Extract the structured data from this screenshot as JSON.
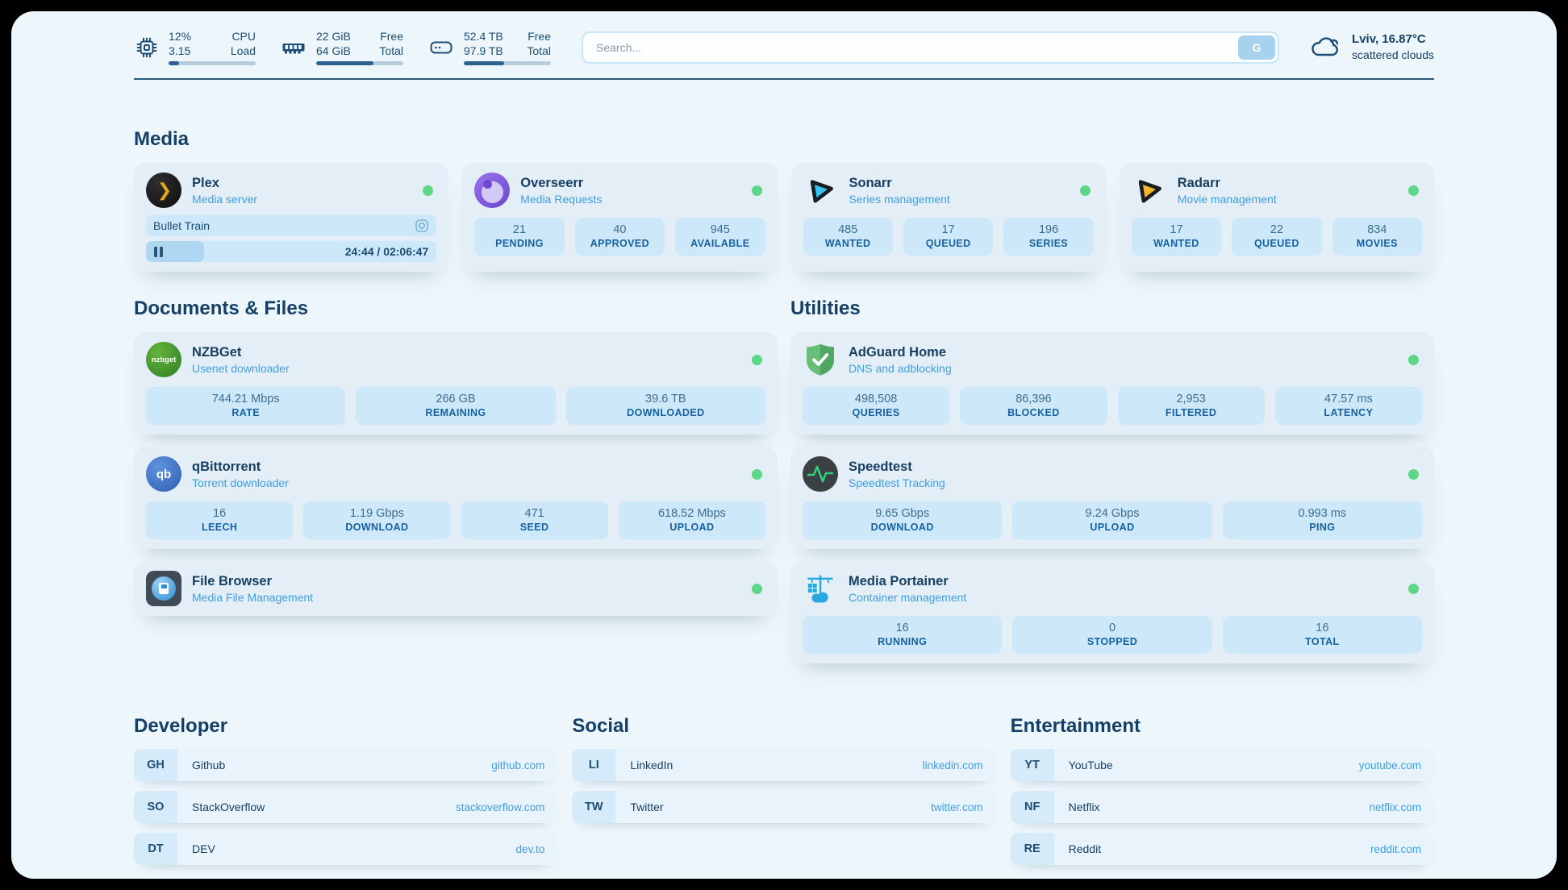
{
  "topbar": {
    "cpu": {
      "value_top": "12%",
      "value_bottom": "3.15",
      "label_top": "CPU",
      "label_bottom": "Load",
      "progress_percent": 12
    },
    "memory": {
      "value_top": "22 GiB",
      "value_bottom": "64 GiB",
      "label_top": "Free",
      "label_bottom": "Total",
      "progress_percent": 66
    },
    "disk": {
      "value_top": "52.4 TB",
      "value_bottom": "97.9 TB",
      "label_top": "Free",
      "label_bottom": "Total",
      "progress_percent": 46
    },
    "search": {
      "placeholder": "Search...",
      "button_label": "G"
    },
    "weather": {
      "location": "Lviv, 16.87°C",
      "condition": "scattered clouds"
    }
  },
  "groups": {
    "media": {
      "title": "Media",
      "plex": {
        "name": "Plex",
        "subtitle": "Media server",
        "now_playing": "Bullet Train",
        "time_display": "24:44 / 02:06:47",
        "progress_percent": 20
      },
      "overseerr": {
        "name": "Overseerr",
        "subtitle": "Media Requests",
        "stats": [
          {
            "value": "21",
            "label": "PENDING"
          },
          {
            "value": "40",
            "label": "APPROVED"
          },
          {
            "value": "945",
            "label": "AVAILABLE"
          }
        ]
      },
      "sonarr": {
        "name": "Sonarr",
        "subtitle": "Series management",
        "stats": [
          {
            "value": "485",
            "label": "WANTED"
          },
          {
            "value": "17",
            "label": "QUEUED"
          },
          {
            "value": "196",
            "label": "SERIES"
          }
        ]
      },
      "radarr": {
        "name": "Radarr",
        "subtitle": "Movie management",
        "stats": [
          {
            "value": "17",
            "label": "WANTED"
          },
          {
            "value": "22",
            "label": "QUEUED"
          },
          {
            "value": "834",
            "label": "MOVIES"
          }
        ]
      }
    },
    "documents": {
      "title": "Documents & Files",
      "nzbget": {
        "name": "NZBGet",
        "subtitle": "Usenet downloader",
        "stats": [
          {
            "value": "744.21 Mbps",
            "label": "RATE"
          },
          {
            "value": "266 GB",
            "label": "REMAINING"
          },
          {
            "value": "39.6 TB",
            "label": "DOWNLOADED"
          }
        ]
      },
      "qbittorrent": {
        "name": "qBittorrent",
        "subtitle": "Torrent downloader",
        "stats": [
          {
            "value": "16",
            "label": "LEECH"
          },
          {
            "value": "1.19 Gbps",
            "label": "DOWNLOAD"
          },
          {
            "value": "471",
            "label": "SEED"
          },
          {
            "value": "618.52 Mbps",
            "label": "UPLOAD"
          }
        ]
      },
      "filebrowser": {
        "name": "File Browser",
        "subtitle": "Media File Management"
      }
    },
    "utilities": {
      "title": "Utilities",
      "adguard": {
        "name": "AdGuard Home",
        "subtitle": "DNS and adblocking",
        "stats": [
          {
            "value": "498,508",
            "label": "QUERIES"
          },
          {
            "value": "86,396",
            "label": "BLOCKED"
          },
          {
            "value": "2,953",
            "label": "FILTERED"
          },
          {
            "value": "47.57 ms",
            "label": "LATENCY"
          }
        ]
      },
      "speedtest": {
        "name": "Speedtest",
        "subtitle": "Speedtest Tracking",
        "stats": [
          {
            "value": "9.65 Gbps",
            "label": "DOWNLOAD"
          },
          {
            "value": "9.24 Gbps",
            "label": "UPLOAD"
          },
          {
            "value": "0.993 ms",
            "label": "PING"
          }
        ]
      },
      "portainer": {
        "name": "Media Portainer",
        "subtitle": "Container management",
        "stats": [
          {
            "value": "16",
            "label": "RUNNING"
          },
          {
            "value": "0",
            "label": "STOPPED"
          },
          {
            "value": "16",
            "label": "TOTAL"
          }
        ]
      }
    }
  },
  "bookmarks": [
    {
      "title": "Developer",
      "items": [
        {
          "abbr": "GH",
          "name": "Github",
          "url": "github.com"
        },
        {
          "abbr": "SO",
          "name": "StackOverflow",
          "url": "stackoverflow.com"
        },
        {
          "abbr": "DT",
          "name": "DEV",
          "url": "dev.to"
        }
      ]
    },
    {
      "title": "Social",
      "items": [
        {
          "abbr": "LI",
          "name": "LinkedIn",
          "url": "linkedin.com"
        },
        {
          "abbr": "TW",
          "name": "Twitter",
          "url": "twitter.com"
        }
      ]
    },
    {
      "title": "Entertainment",
      "items": [
        {
          "abbr": "YT",
          "name": "YouTube",
          "url": "youtube.com"
        },
        {
          "abbr": "NF",
          "name": "Netflix",
          "url": "netflix.com"
        },
        {
          "abbr": "RE",
          "name": "Reddit",
          "url": "reddit.com"
        }
      ]
    }
  ],
  "icons": {
    "plex_glyph": "❯",
    "qb_glyph": "qb",
    "nzbget_glyph": "nzbget"
  },
  "colors": {
    "accent_blue": "#3f9fe0",
    "status_green": "#5ed687",
    "navy": "#173f63",
    "stat_bg": "#cde8f9"
  }
}
